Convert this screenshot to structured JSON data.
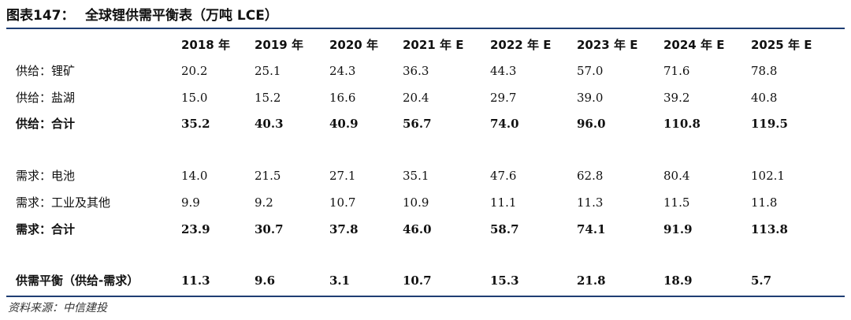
{
  "title": {
    "figure": "图表147：",
    "text": "全球锂供需平衡表（万吨 LCE）"
  },
  "columns": [
    "2018 年",
    "2019 年",
    "2020 年",
    "2021 年 E",
    "2022 年 E",
    "2023 年 E",
    "2024 年 E",
    "2025 年 E"
  ],
  "rows": [
    {
      "label": "供给：锂矿",
      "values": [
        "20.2",
        "25.1",
        "24.3",
        "36.3",
        "44.3",
        "57.0",
        "71.6",
        "78.8"
      ]
    },
    {
      "label": "供给：盐湖",
      "values": [
        "15.0",
        "15.2",
        "16.6",
        "20.4",
        "29.7",
        "39.0",
        "39.2",
        "40.8"
      ]
    },
    {
      "label": "供给：合计",
      "values": [
        "35.2",
        "40.3",
        "40.9",
        "56.7",
        "74.0",
        "96.0",
        "110.8",
        "119.5"
      ]
    },
    {
      "label": "需求：电池",
      "values": [
        "14.0",
        "21.5",
        "27.1",
        "35.1",
        "47.6",
        "62.8",
        "80.4",
        "102.1"
      ]
    },
    {
      "label": "需求：工业及其他",
      "values": [
        "9.9",
        "9.2",
        "10.7",
        "10.9",
        "11.1",
        "11.3",
        "11.5",
        "11.8"
      ]
    },
    {
      "label": "需求：合计",
      "values": [
        "23.9",
        "30.7",
        "37.8",
        "46.0",
        "58.7",
        "74.1",
        "91.9",
        "113.8"
      ]
    },
    {
      "label": "供需平衡（供给-需求）",
      "values": [
        "11.3",
        "9.6",
        "3.1",
        "10.7",
        "15.3",
        "21.8",
        "18.9",
        "5.7"
      ]
    }
  ],
  "source": "资料来源：中信建投",
  "colors": {
    "rule": "#1f3e73"
  }
}
